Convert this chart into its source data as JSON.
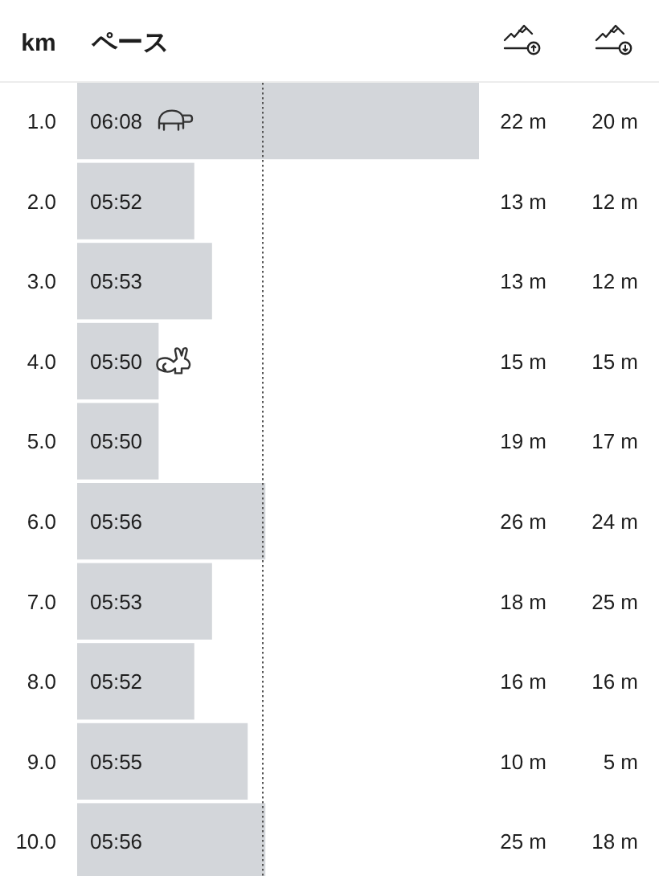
{
  "chart_data": [
    {
      "type": "bar",
      "orientation": "horizontal",
      "ylabel": "km",
      "xlabel": "ペース",
      "tick_labels": "y",
      "categories": [
        "1.0",
        "2.0",
        "3.0",
        "4.0",
        "5.0",
        "6.0",
        "7.0",
        "8.0",
        "9.0",
        "10.0"
      ],
      "color": "#d3d6da",
      "values": [
        6.1333,
        5.8667,
        5.8833,
        5.8333,
        5.8333,
        5.9333,
        5.8833,
        5.8667,
        5.9167,
        5.9333
      ],
      "value_labels": [
        "06:08",
        "05:52",
        "05:53",
        "05:50",
        "05:50",
        "05:56",
        "05:53",
        "05:52",
        "05:55",
        "05:56"
      ],
      "xlim": [
        5.757,
        6.1333
      ],
      "ref_lines": [
        {
          "axis": "x",
          "value": 5.93,
          "color": "#555555",
          "line_style": "dotted"
        }
      ]
    },
    {
      "type": "other",
      "annotations": [
        "22 m",
        "20 m",
        "13 m",
        "12 m",
        "13 m",
        "12 m",
        "15 m",
        "15 m",
        "19 m",
        "17 m",
        "26 m",
        "24 m",
        "18 m",
        "25 m",
        "16 m",
        "16 m",
        "10 m",
        "5 m",
        "25 m",
        "18 m"
      ]
    }
  ]
}
